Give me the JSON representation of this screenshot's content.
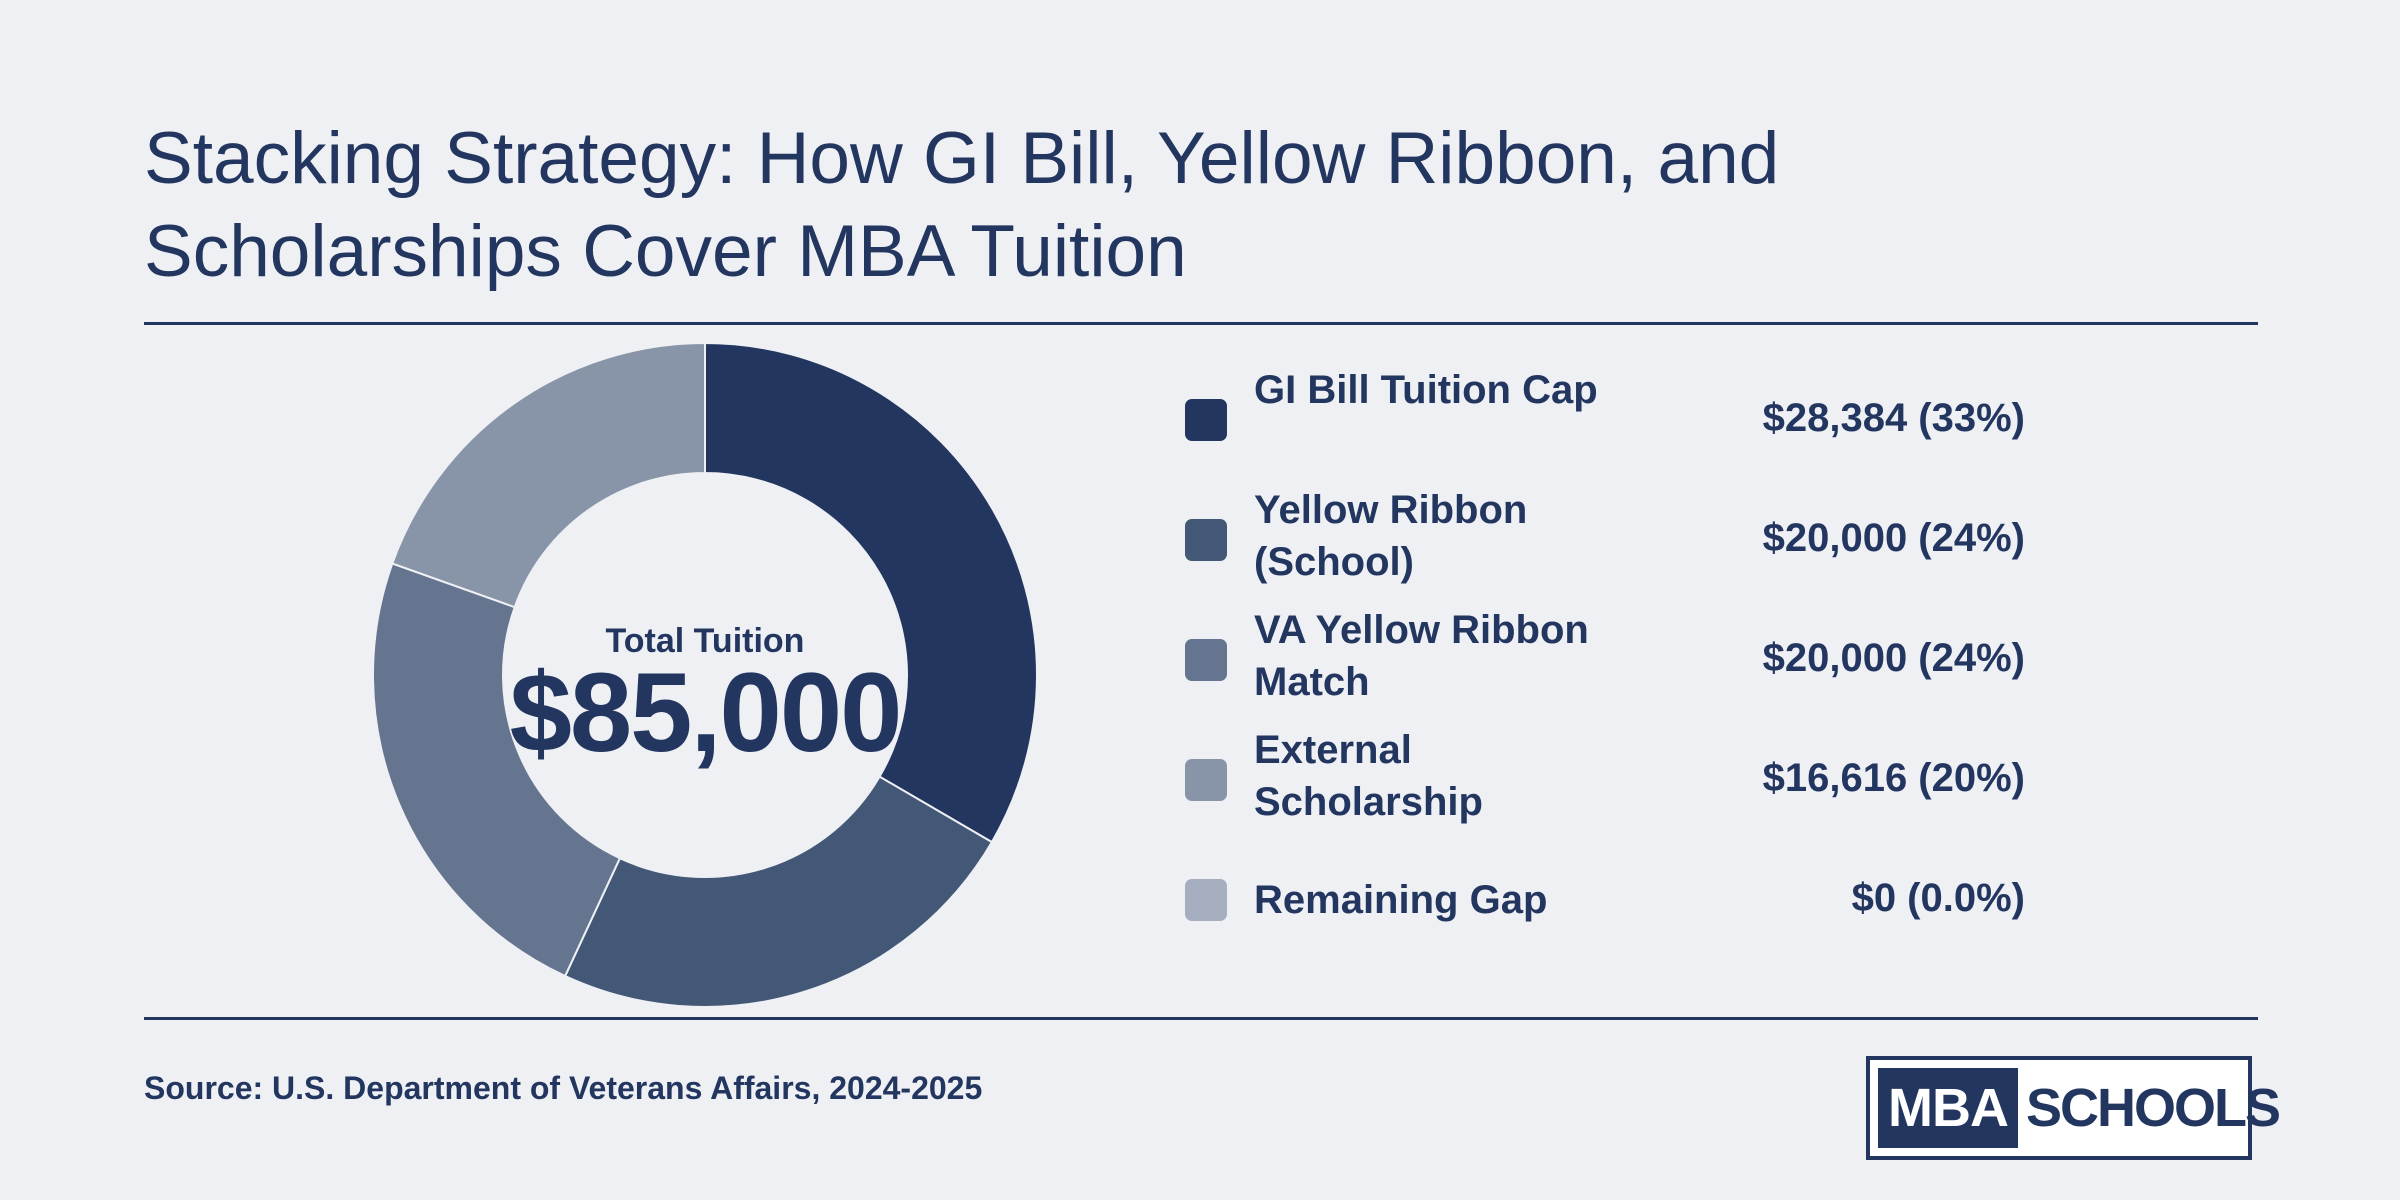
{
  "title": "Stacking Strategy: How GI Bill, Yellow Ribbon, and Scholarships Cover MBA Tuition",
  "center": {
    "label": "Total Tuition",
    "value": "$85,000"
  },
  "chart_data": {
    "type": "pie",
    "style": "donut",
    "total": 85000,
    "title": "Stacking Strategy: How GI Bill, Yellow Ribbon, and Scholarships Cover MBA Tuition",
    "legend_placement": "right",
    "series": [
      {
        "name": "GI Bill Tuition Cap",
        "value": 28384,
        "display": "$28,384 (33%)",
        "color": "#22365f"
      },
      {
        "name": "Yellow Ribbon (School)",
        "value": 20000,
        "display": "$20,000 (24%)",
        "color": "#435777"
      },
      {
        "name": "VA Yellow Ribbon Match",
        "value": 20000,
        "display": "$20,000 (24%)",
        "color": "#65758f"
      },
      {
        "name": "External Scholarship",
        "value": 16616,
        "display": "$16,616 (20%)",
        "color": "#8894a8"
      },
      {
        "name": "Remaining Gap",
        "value": 0,
        "display": "$0 (0.0%)",
        "color": "#a6afbf"
      }
    ]
  },
  "source": "Source: U.S. Department of Veterans Affairs, 2024-2025",
  "logo": {
    "part1": "MBA",
    "part2": "SCHOOLS"
  }
}
